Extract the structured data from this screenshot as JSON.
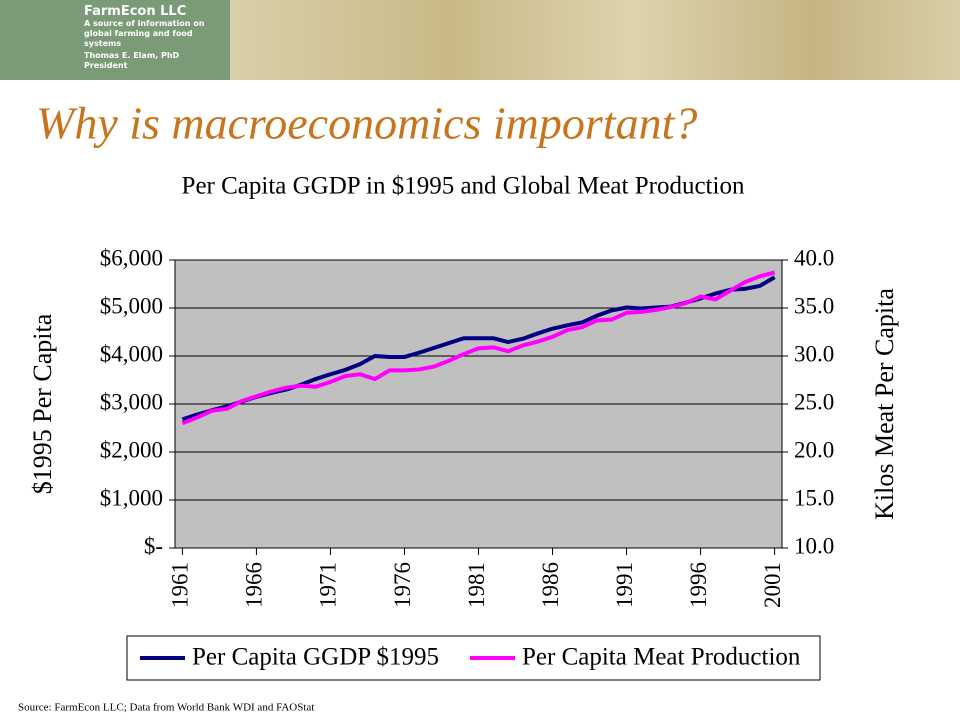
{
  "header": {
    "company": "FarmEcon LLC",
    "tagline": "A source of information on global farming and food systems",
    "author": "Thomas E. Elam, PhD",
    "role": "President"
  },
  "slide_title": "Why is macroeconomics important?",
  "source": "Source: FarmEcon LLC; Data from World Bank WDI and FAOStat",
  "chart_data": {
    "type": "line",
    "title": "Per Capita GGDP in $1995 and Global Meat Production",
    "y_label": "$1995 Per Capita",
    "y2_label": "Kilos Meat Per Capita",
    "x": [
      1961,
      1962,
      1963,
      1964,
      1965,
      1966,
      1967,
      1968,
      1969,
      1970,
      1971,
      1972,
      1973,
      1974,
      1975,
      1976,
      1977,
      1978,
      1979,
      1980,
      1981,
      1982,
      1983,
      1984,
      1985,
      1986,
      1987,
      1988,
      1989,
      1990,
      1991,
      1992,
      1993,
      1994,
      1995,
      1996,
      1997,
      1998,
      1999,
      2000,
      2001
    ],
    "xlim": [
      1960.5,
      2001.5
    ],
    "xticks": [
      1961,
      1966,
      1971,
      1976,
      1981,
      1986,
      1991,
      1996,
      2001
    ],
    "ylim": [
      0,
      6000
    ],
    "yticks": [
      {
        "value": 0,
        "label": "$-"
      },
      {
        "value": 1000,
        "label": "$1,000"
      },
      {
        "value": 2000,
        "label": "$2,000"
      },
      {
        "value": 3000,
        "label": "$3,000"
      },
      {
        "value": 4000,
        "label": "$4,000"
      },
      {
        "value": 5000,
        "label": "$5,000"
      },
      {
        "value": 6000,
        "label": "$6,000"
      }
    ],
    "y2lim": [
      10,
      40
    ],
    "y2ticks": [
      {
        "value": 10,
        "label": "10.0"
      },
      {
        "value": 15,
        "label": "15.0"
      },
      {
        "value": 20,
        "label": "20.0"
      },
      {
        "value": 25,
        "label": "25.0"
      },
      {
        "value": 30,
        "label": "30.0"
      },
      {
        "value": 35,
        "label": "35.0"
      },
      {
        "value": 40,
        "label": "40.0"
      }
    ],
    "grid": true,
    "legend": "bottom",
    "series": [
      {
        "name": "Per Capita GGDP $1995",
        "color": "#000080",
        "values": [
          2680,
          2780,
          2870,
          2950,
          3050,
          3150,
          3230,
          3300,
          3400,
          3520,
          3620,
          3710,
          3830,
          4000,
          3980,
          3980,
          4070,
          4170,
          4270,
          4370,
          4370,
          4370,
          4290,
          4360,
          4470,
          4570,
          4640,
          4700,
          4840,
          4950,
          5010,
          4990,
          5010,
          5030,
          5110,
          5200,
          5300,
          5380,
          5400,
          5460,
          5640
        ]
      },
      {
        "name": "Per Capita Meat Production",
        "color": "#ff00ff",
        "axis": "y2",
        "values": [
          23.0,
          23.6,
          24.3,
          24.5,
          25.3,
          25.8,
          26.3,
          26.7,
          26.9,
          26.8,
          27.3,
          27.9,
          28.1,
          27.6,
          28.5,
          28.5,
          28.6,
          28.9,
          29.5,
          30.2,
          30.8,
          30.9,
          30.5,
          31.1,
          31.5,
          32.0,
          32.7,
          33.0,
          33.7,
          33.8,
          34.5,
          34.6,
          34.8,
          35.1,
          35.5,
          36.2,
          35.9,
          36.8,
          37.7,
          38.3,
          38.7
        ]
      }
    ]
  }
}
